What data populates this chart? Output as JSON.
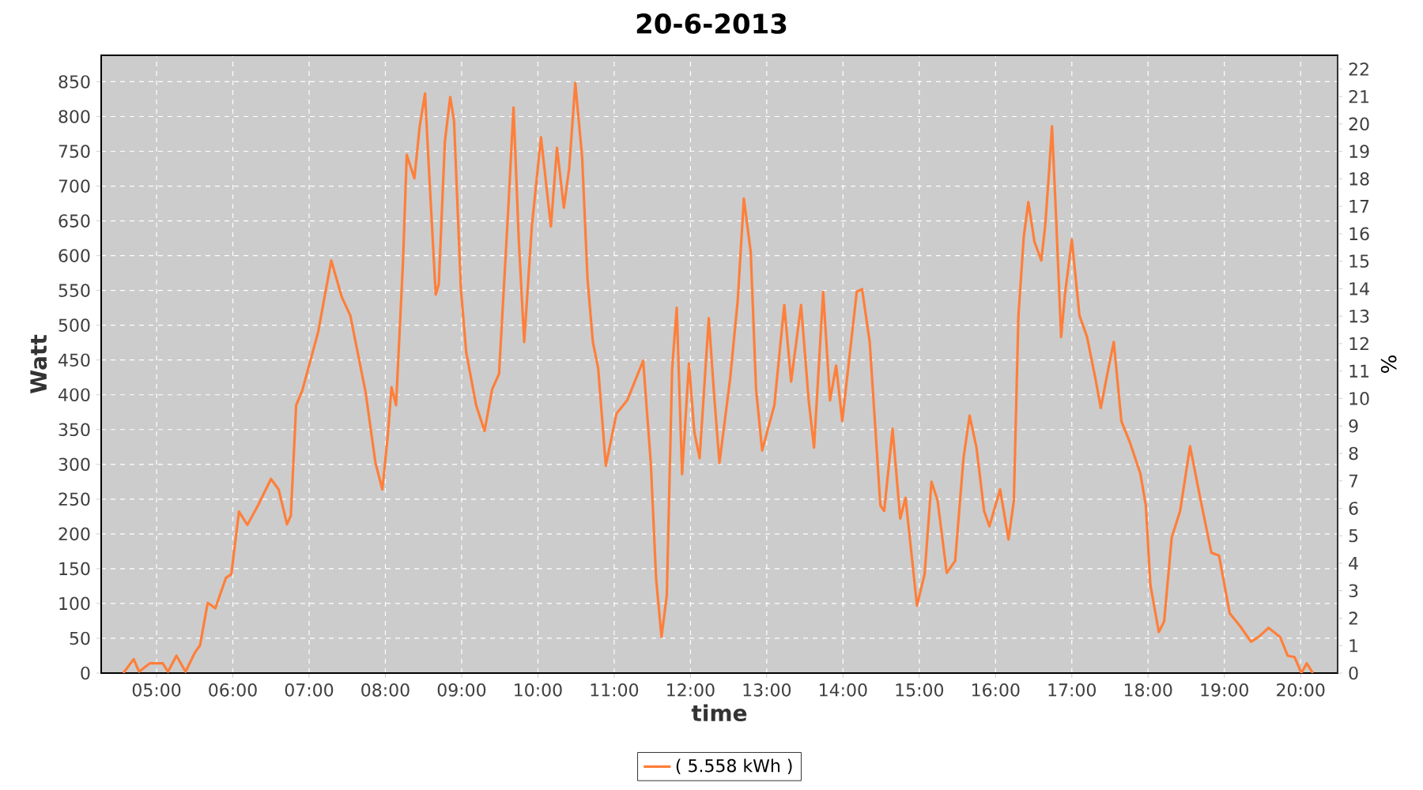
{
  "chart_data": {
    "type": "line",
    "title": "20-6-2013",
    "xlabel": "time",
    "ylabel": "Watt",
    "y2label": "%",
    "x": [
      4.565,
      4.7,
      4.77,
      4.91,
      5.08,
      5.15,
      5.26,
      5.38,
      5.5,
      5.57,
      5.67,
      5.77,
      5.91,
      5.98,
      6.08,
      6.19,
      6.33,
      6.5,
      6.6,
      6.71,
      6.76,
      6.83,
      6.91,
      7.12,
      7.29,
      7.43,
      7.54,
      7.74,
      7.87,
      7.96,
      8.03,
      8.08,
      8.14,
      8.23,
      8.28,
      8.38,
      8.45,
      8.52,
      8.57,
      8.66,
      8.7,
      8.78,
      8.85,
      8.9,
      8.99,
      9.06,
      9.19,
      9.3,
      9.4,
      9.49,
      9.61,
      9.68,
      9.75,
      9.82,
      9.92,
      10.04,
      10.17,
      10.25,
      10.34,
      10.41,
      10.49,
      10.58,
      10.65,
      10.72,
      10.79,
      10.89,
      11.03,
      11.17,
      11.38,
      11.48,
      11.55,
      11.62,
      11.69,
      11.76,
      11.82,
      11.89,
      11.98,
      12.05,
      12.12,
      12.24,
      12.31,
      12.38,
      12.52,
      12.62,
      12.7,
      12.79,
      12.86,
      12.94,
      13.1,
      13.23,
      13.32,
      13.45,
      13.55,
      13.62,
      13.74,
      13.83,
      13.91,
      13.99,
      14.18,
      14.25,
      14.35,
      14.49,
      14.54,
      14.65,
      14.75,
      14.82,
      14.97,
      15.07,
      15.16,
      15.24,
      15.36,
      15.47,
      15.58,
      15.66,
      15.75,
      15.85,
      15.92,
      16.06,
      16.17,
      16.24,
      16.3,
      16.37,
      16.43,
      16.51,
      16.6,
      16.65,
      16.7,
      16.74,
      16.79,
      16.86,
      16.91,
      17.0,
      17.1,
      17.2,
      17.31,
      17.38,
      17.48,
      17.55,
      17.65,
      17.76,
      17.9,
      17.97,
      18.03,
      18.14,
      18.21,
      18.31,
      18.42,
      18.55,
      18.69,
      18.83,
      18.93,
      19.07,
      19.21,
      19.35,
      19.45,
      19.58,
      19.73,
      19.83,
      19.92,
      20.01,
      20.08,
      20.16
    ],
    "series": [
      {
        "name": "( 5.558 kWh )",
        "color": "#ff7f3a",
        "values": [
          0,
          20,
          2,
          14,
          14,
          2,
          25,
          2,
          29,
          40,
          101,
          93,
          137,
          142,
          232,
          213,
          241,
          279,
          264,
          214,
          226,
          385,
          406,
          491,
          593,
          540,
          514,
          404,
          302,
          264,
          339,
          411,
          385,
          589,
          745,
          711,
          786,
          833,
          726,
          544,
          559,
          764,
          828,
          794,
          552,
          461,
          385,
          348,
          408,
          430,
          665,
          813,
          620,
          476,
          642,
          770,
          642,
          755,
          669,
          726,
          848,
          741,
          567,
          476,
          438,
          298,
          373,
          392,
          449,
          302,
          135,
          52,
          112,
          438,
          525,
          286,
          445,
          347,
          309,
          510,
          400,
          302,
          423,
          536,
          682,
          605,
          408,
          320,
          385,
          529,
          419,
          529,
          392,
          324,
          548,
          392,
          442,
          362,
          548,
          552,
          476,
          241,
          233,
          351,
          222,
          252,
          97,
          142,
          275,
          248,
          144,
          161,
          309,
          370,
          324,
          233,
          211,
          264,
          192,
          248,
          514,
          627,
          677,
          620,
          593,
          642,
          718,
          786,
          665,
          483,
          544,
          623,
          514,
          483,
          423,
          381,
          438,
          476,
          362,
          332,
          286,
          241,
          127,
          59,
          74,
          195,
          233,
          326,
          248,
          173,
          169,
          86,
          67,
          45,
          52,
          65,
          52,
          25,
          23,
          0,
          14,
          0
        ]
      }
    ],
    "xlim": [
      4.274,
      20.485
    ],
    "xticks": [
      {
        "value": 5,
        "label": "05:00"
      },
      {
        "value": 6,
        "label": "06:00"
      },
      {
        "value": 7,
        "label": "07:00"
      },
      {
        "value": 8,
        "label": "08:00"
      },
      {
        "value": 9,
        "label": "09:00"
      },
      {
        "value": 10,
        "label": "10:00"
      },
      {
        "value": 11,
        "label": "11:00"
      },
      {
        "value": 12,
        "label": "12:00"
      },
      {
        "value": 13,
        "label": "13:00"
      },
      {
        "value": 14,
        "label": "14:00"
      },
      {
        "value": 15,
        "label": "15:00"
      },
      {
        "value": 16,
        "label": "16:00"
      },
      {
        "value": 17,
        "label": "17:00"
      },
      {
        "value": 18,
        "label": "18:00"
      },
      {
        "value": 19,
        "label": "19:00"
      },
      {
        "value": 20,
        "label": "20:00"
      }
    ],
    "ylim": [
      0,
      888
    ],
    "yticks": [
      0,
      50,
      100,
      150,
      200,
      250,
      300,
      350,
      400,
      450,
      500,
      550,
      600,
      650,
      700,
      750,
      800,
      850
    ],
    "y2lim": [
      0,
      22.5
    ],
    "y2ticks": [
      0,
      1,
      2,
      3,
      4,
      5,
      6,
      7,
      8,
      9,
      10,
      11,
      12,
      13,
      14,
      15,
      16,
      17,
      18,
      19,
      20,
      21,
      22
    ],
    "grid": true,
    "legend": "bottom",
    "line_style": "solid"
  }
}
